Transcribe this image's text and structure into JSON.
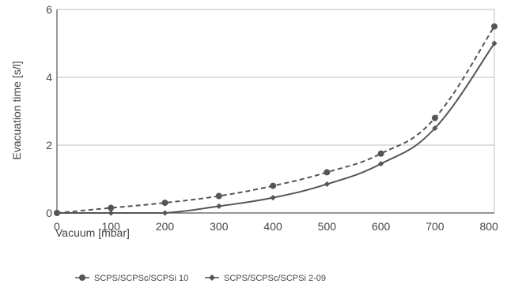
{
  "chart_data": {
    "type": "line",
    "title": "",
    "xlabel": "Vacuum [mbar]",
    "ylabel": "Evacuation time [s/l]",
    "xlim": [
      0,
      810
    ],
    "ylim": [
      0,
      6
    ],
    "xticks": [
      0,
      100,
      200,
      300,
      400,
      500,
      600,
      700,
      800
    ],
    "yticks": [
      0,
      2,
      4,
      6
    ],
    "grid": "horizontal",
    "legend_position": "bottom-left",
    "series": [
      {
        "name": "SCPS/SCPSc/SCPSi 10",
        "marker": "circle",
        "line_style": "dashed",
        "color": "#555555",
        "x": [
          0,
          100,
          200,
          300,
          400,
          500,
          600,
          700,
          810
        ],
        "y": [
          0,
          0.15,
          0.3,
          0.5,
          0.8,
          1.2,
          1.75,
          2.8,
          5.5
        ]
      },
      {
        "name": "SCPS/SCPSc/SCPSi 2-09",
        "marker": "diamond",
        "line_style": "solid",
        "color": "#555555",
        "x": [
          0,
          100,
          200,
          300,
          400,
          500,
          600,
          700,
          810
        ],
        "y": [
          0,
          0,
          0,
          0.2,
          0.45,
          0.85,
          1.45,
          2.5,
          5.0
        ]
      }
    ]
  }
}
